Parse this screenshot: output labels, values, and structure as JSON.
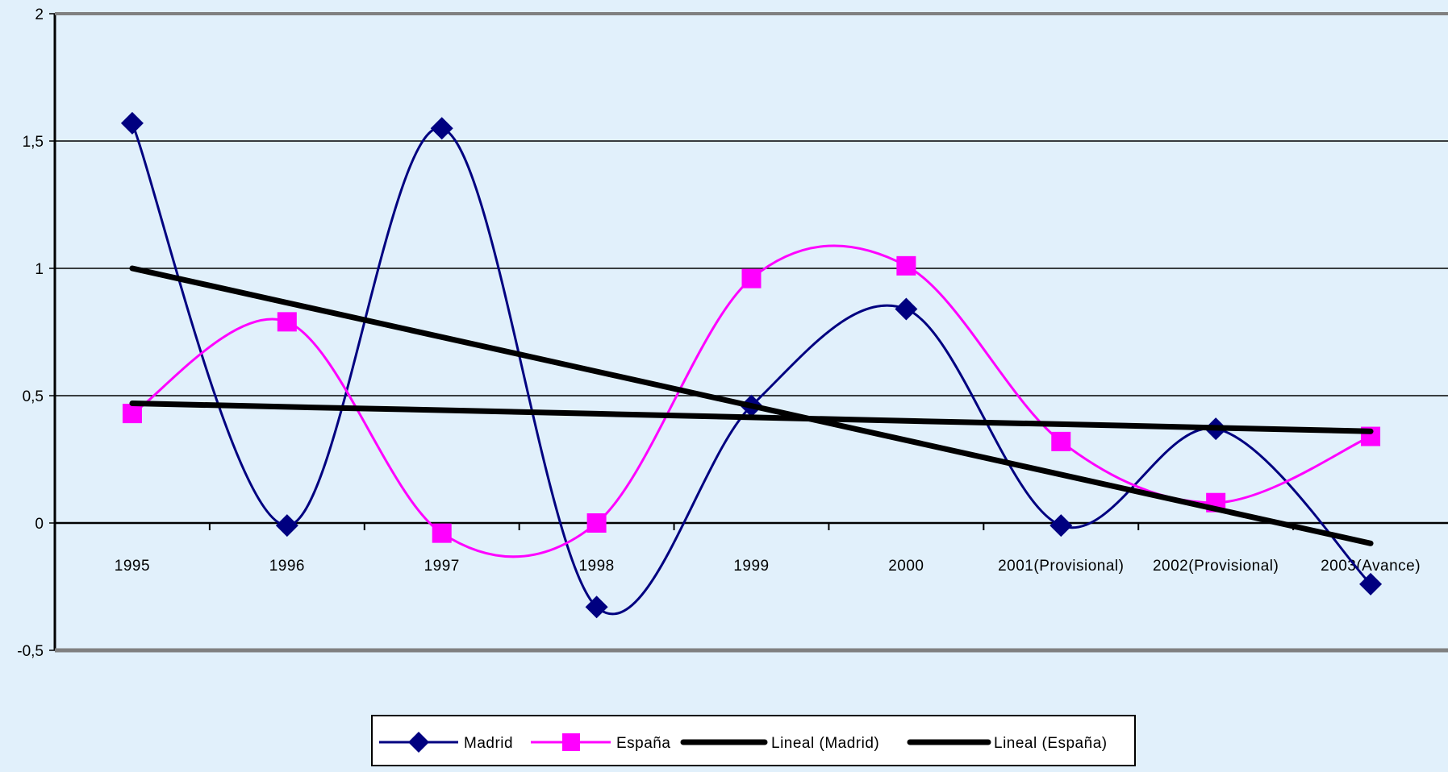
{
  "chart_data": {
    "type": "line",
    "title": "",
    "xlabel": "",
    "ylabel": "",
    "categories": [
      "1995",
      "1996",
      "1997",
      "1998",
      "1999",
      "2000",
      "2001(Provisional)",
      "2002(Provisional)",
      "2003(Avance)"
    ],
    "ylim": [
      -0.5,
      2
    ],
    "yticks": [
      -0.5,
      0,
      0.5,
      1,
      1.5,
      2
    ],
    "ytick_labels": [
      "-0,5",
      "0",
      "0,5",
      "1",
      "1,5",
      "2"
    ],
    "grid": true,
    "legend_position": "bottom",
    "series": [
      {
        "name": "Madrid",
        "values": [
          1.57,
          -0.01,
          1.55,
          -0.33,
          0.46,
          0.84,
          -0.01,
          0.37,
          -0.24
        ],
        "color": "#000080",
        "marker": "diamond",
        "style": "smooth"
      },
      {
        "name": "España",
        "values": [
          0.43,
          0.79,
          -0.04,
          0.0,
          0.96,
          1.01,
          0.32,
          0.08,
          0.34
        ],
        "color": "#ff00ff",
        "marker": "square",
        "style": "smooth"
      }
    ],
    "trendlines": [
      {
        "name": "Lineal (Madrid)",
        "color": "#000000",
        "values": [
          1.0,
          0.865,
          0.73,
          0.595,
          0.46,
          0.325,
          0.19,
          0.055,
          -0.08
        ]
      },
      {
        "name": "Lineal (España)",
        "color": "#000000",
        "values": [
          0.47,
          0.456,
          0.443,
          0.429,
          0.415,
          0.401,
          0.388,
          0.374,
          0.36
        ]
      }
    ]
  },
  "legend": {
    "items": [
      "Madrid",
      "España",
      "Lineal (Madrid)",
      "Lineal (España)"
    ]
  }
}
